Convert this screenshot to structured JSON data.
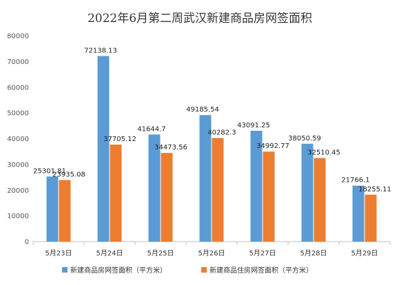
{
  "chart_data": {
    "type": "bar",
    "title": "2022年6月第二周武汉新建商品房网签面积",
    "categories": [
      "5月23日",
      "5月24日",
      "5月25日",
      "5月26日",
      "5月27日",
      "5月28日",
      "5月29日"
    ],
    "series": [
      {
        "name": "新建商品房网签面积（平方米）",
        "color": "#5b9bd5",
        "values": [
          25301.81,
          72138.13,
          41644.7,
          49185.54,
          43091.25,
          38050.59,
          21766.1
        ],
        "labels": [
          "25301.81",
          "72138.13",
          "41644.7",
          "49185.54",
          "43091.25",
          "38050.59",
          "21766.1"
        ]
      },
      {
        "name": "新建商品住房网签面积（平方米）",
        "color": "#ed7d31",
        "values": [
          23935.08,
          37705.12,
          34473.56,
          40282.3,
          34992.77,
          32510.45,
          18255.11
        ],
        "labels": [
          "23935.08",
          "37705.12",
          "34473.56",
          "40282.3",
          "34992.77",
          "32510.45",
          "18255.11"
        ]
      }
    ],
    "ylim": [
      0,
      80000
    ],
    "yticks": [
      0,
      10000,
      20000,
      30000,
      40000,
      50000,
      60000,
      70000,
      80000
    ],
    "grid": false,
    "legend_position": "bottom"
  }
}
